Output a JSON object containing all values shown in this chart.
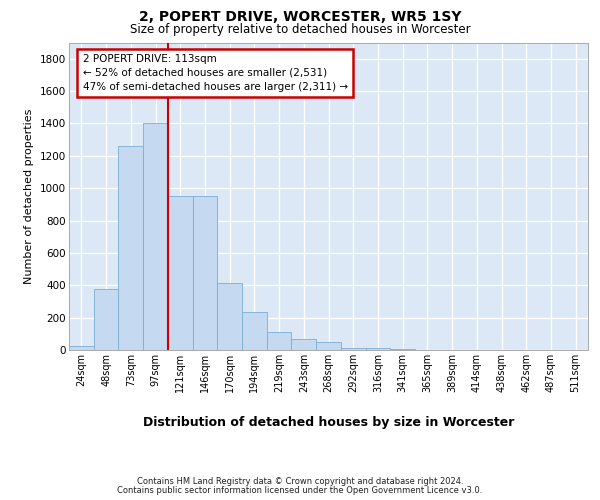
{
  "title1": "2, POPERT DRIVE, WORCESTER, WR5 1SY",
  "title2": "Size of property relative to detached houses in Worcester",
  "xlabel": "Distribution of detached houses by size in Worcester",
  "ylabel": "Number of detached properties",
  "categories": [
    "24sqm",
    "48sqm",
    "73sqm",
    "97sqm",
    "121sqm",
    "146sqm",
    "170sqm",
    "194sqm",
    "219sqm",
    "243sqm",
    "268sqm",
    "292sqm",
    "316sqm",
    "341sqm",
    "365sqm",
    "389sqm",
    "414sqm",
    "438sqm",
    "462sqm",
    "487sqm",
    "511sqm"
  ],
  "values": [
    25,
    380,
    1260,
    1400,
    950,
    950,
    415,
    235,
    110,
    65,
    50,
    15,
    10,
    5,
    3,
    2,
    2,
    1,
    1,
    1,
    1
  ],
  "bar_color": "#c5d9f0",
  "bar_edge_color": "#7badd4",
  "vline_color": "#cc0000",
  "vline_pos": 3.5,
  "annotation_line1": "2 POPERT DRIVE: 113sqm",
  "annotation_line2": "← 52% of detached houses are smaller (2,531)",
  "annotation_line3": "47% of semi-detached houses are larger (2,311) →",
  "annotation_box_facecolor": "#ffffff",
  "annotation_box_edgecolor": "#cc0000",
  "footer1": "Contains HM Land Registry data © Crown copyright and database right 2024.",
  "footer2": "Contains public sector information licensed under the Open Government Licence v3.0.",
  "ylim": [
    0,
    1900
  ],
  "yticks": [
    0,
    200,
    400,
    600,
    800,
    1000,
    1200,
    1400,
    1600,
    1800
  ],
  "bg_color": "#dce8f5",
  "grid_color": "#ffffff",
  "fig_width": 6.0,
  "fig_height": 5.0,
  "dpi": 100
}
